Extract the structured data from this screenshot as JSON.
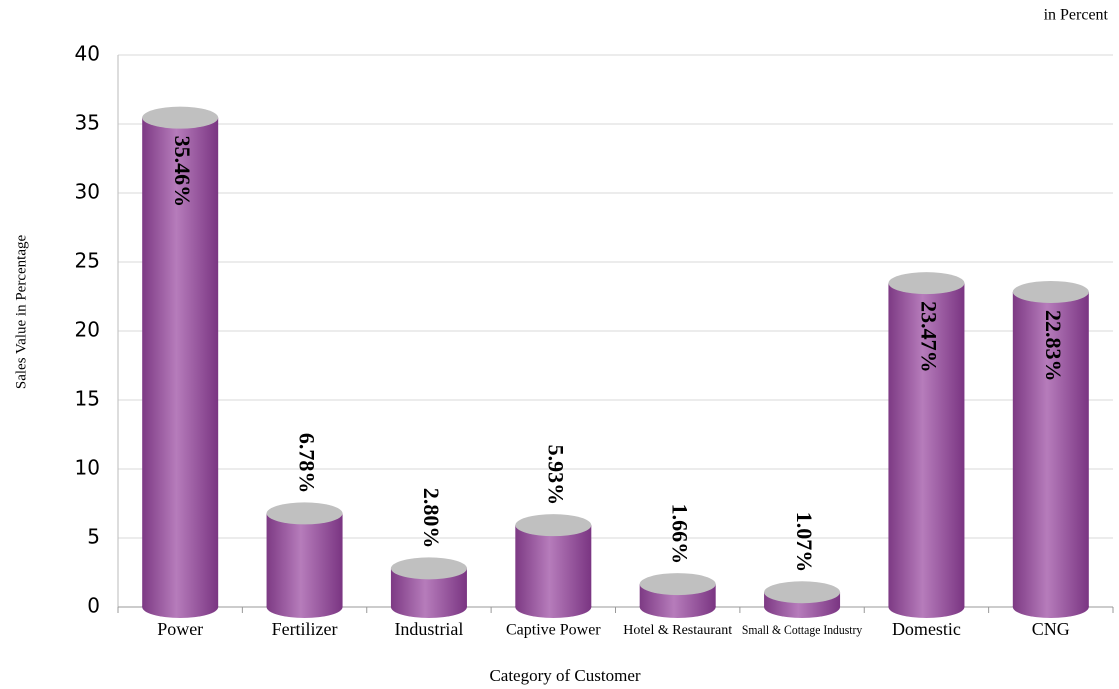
{
  "chart_data": {
    "type": "bar",
    "title": "in Percent",
    "x_label": "Category of Customer",
    "y_label": "Sales Value in Percentage",
    "categories": [
      "Power",
      "Fertilizer",
      "Industrial",
      "Captive Power",
      "Hotel & Restaurant",
      "Small & Cottage Industry",
      "Domestic",
      "CNG"
    ],
    "values": [
      35.46,
      6.78,
      2.8,
      5.93,
      1.66,
      1.07,
      23.47,
      22.83
    ],
    "value_labels": [
      "35.46%",
      "6.78%",
      "2.80%",
      "5.93%",
      "1.66%",
      "1.07%",
      "23.47%",
      "22.83%"
    ],
    "color": "#9c55a3",
    "top_color": "#c0c0c0",
    "ylim": [
      0,
      40
    ],
    "yticks": [
      0,
      5,
      10,
      15,
      20,
      25,
      30,
      35,
      40
    ],
    "grid": true
  }
}
